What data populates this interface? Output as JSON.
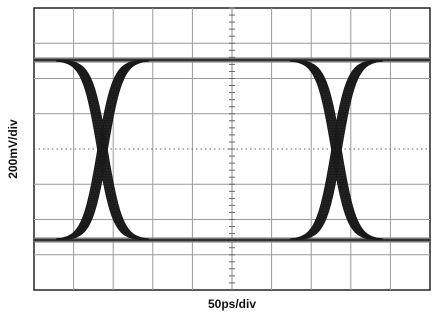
{
  "chart_data": {
    "type": "eye",
    "xlabel": "50ps/div",
    "ylabel": "200mV/div",
    "grid": true
  }
}
